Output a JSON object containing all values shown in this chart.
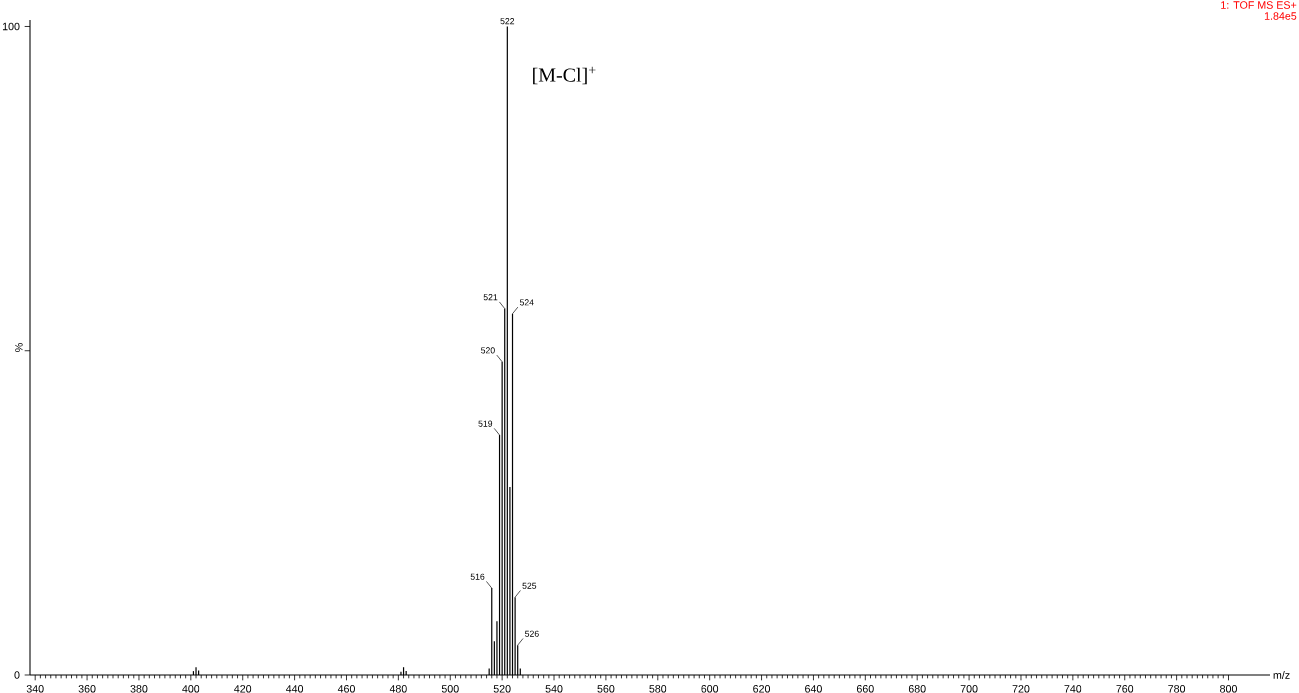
{
  "chart_data": {
    "type": "bar",
    "title": "1: TOF MS ES+",
    "subtitle": "1.84e5",
    "xlabel": "m/z",
    "ylabel": "%",
    "x": [
      401,
      402,
      403,
      481,
      482,
      483,
      515,
      516,
      517,
      518,
      519,
      520,
      521,
      522,
      523,
      524,
      525,
      526,
      527
    ],
    "values": [
      0.6,
      1.2,
      0.7,
      0.5,
      1.2,
      0.6,
      1.0,
      13.4,
      5.2,
      8.3,
      37,
      48.3,
      56.5,
      100,
      29,
      55.7,
      12,
      4.6,
      1.0
    ],
    "color": "#000000",
    "annotations": [
      "[M-Cl]$^{+}$",
      {
        "text": "516",
        "x": 516,
        "y": 13.4
      },
      {
        "text": "519",
        "x": 519,
        "y": 37
      },
      {
        "text": "520",
        "x": 520,
        "y": 48.3
      },
      {
        "text": "521",
        "x": 521,
        "y": 56.5
      },
      {
        "text": "522",
        "x": 522,
        "y": 100
      },
      {
        "text": "524",
        "x": 524,
        "y": 55.7
      },
      {
        "text": "525",
        "x": 525,
        "y": 12
      },
      {
        "text": "526",
        "x": 526,
        "y": 4.6
      }
    ],
    "xlim": [
      338,
      816
    ],
    "ylim": [
      0,
      101
    ],
    "xticks": [
      340,
      360,
      380,
      400,
      420,
      440,
      460,
      480,
      500,
      520,
      540,
      560,
      580,
      600,
      620,
      640,
      660,
      680,
      700,
      720,
      740,
      760,
      780,
      800
    ],
    "yticks": [
      0,
      {
        "value": 50,
        "label": null
      },
      100
    ],
    "marker": "none"
  }
}
